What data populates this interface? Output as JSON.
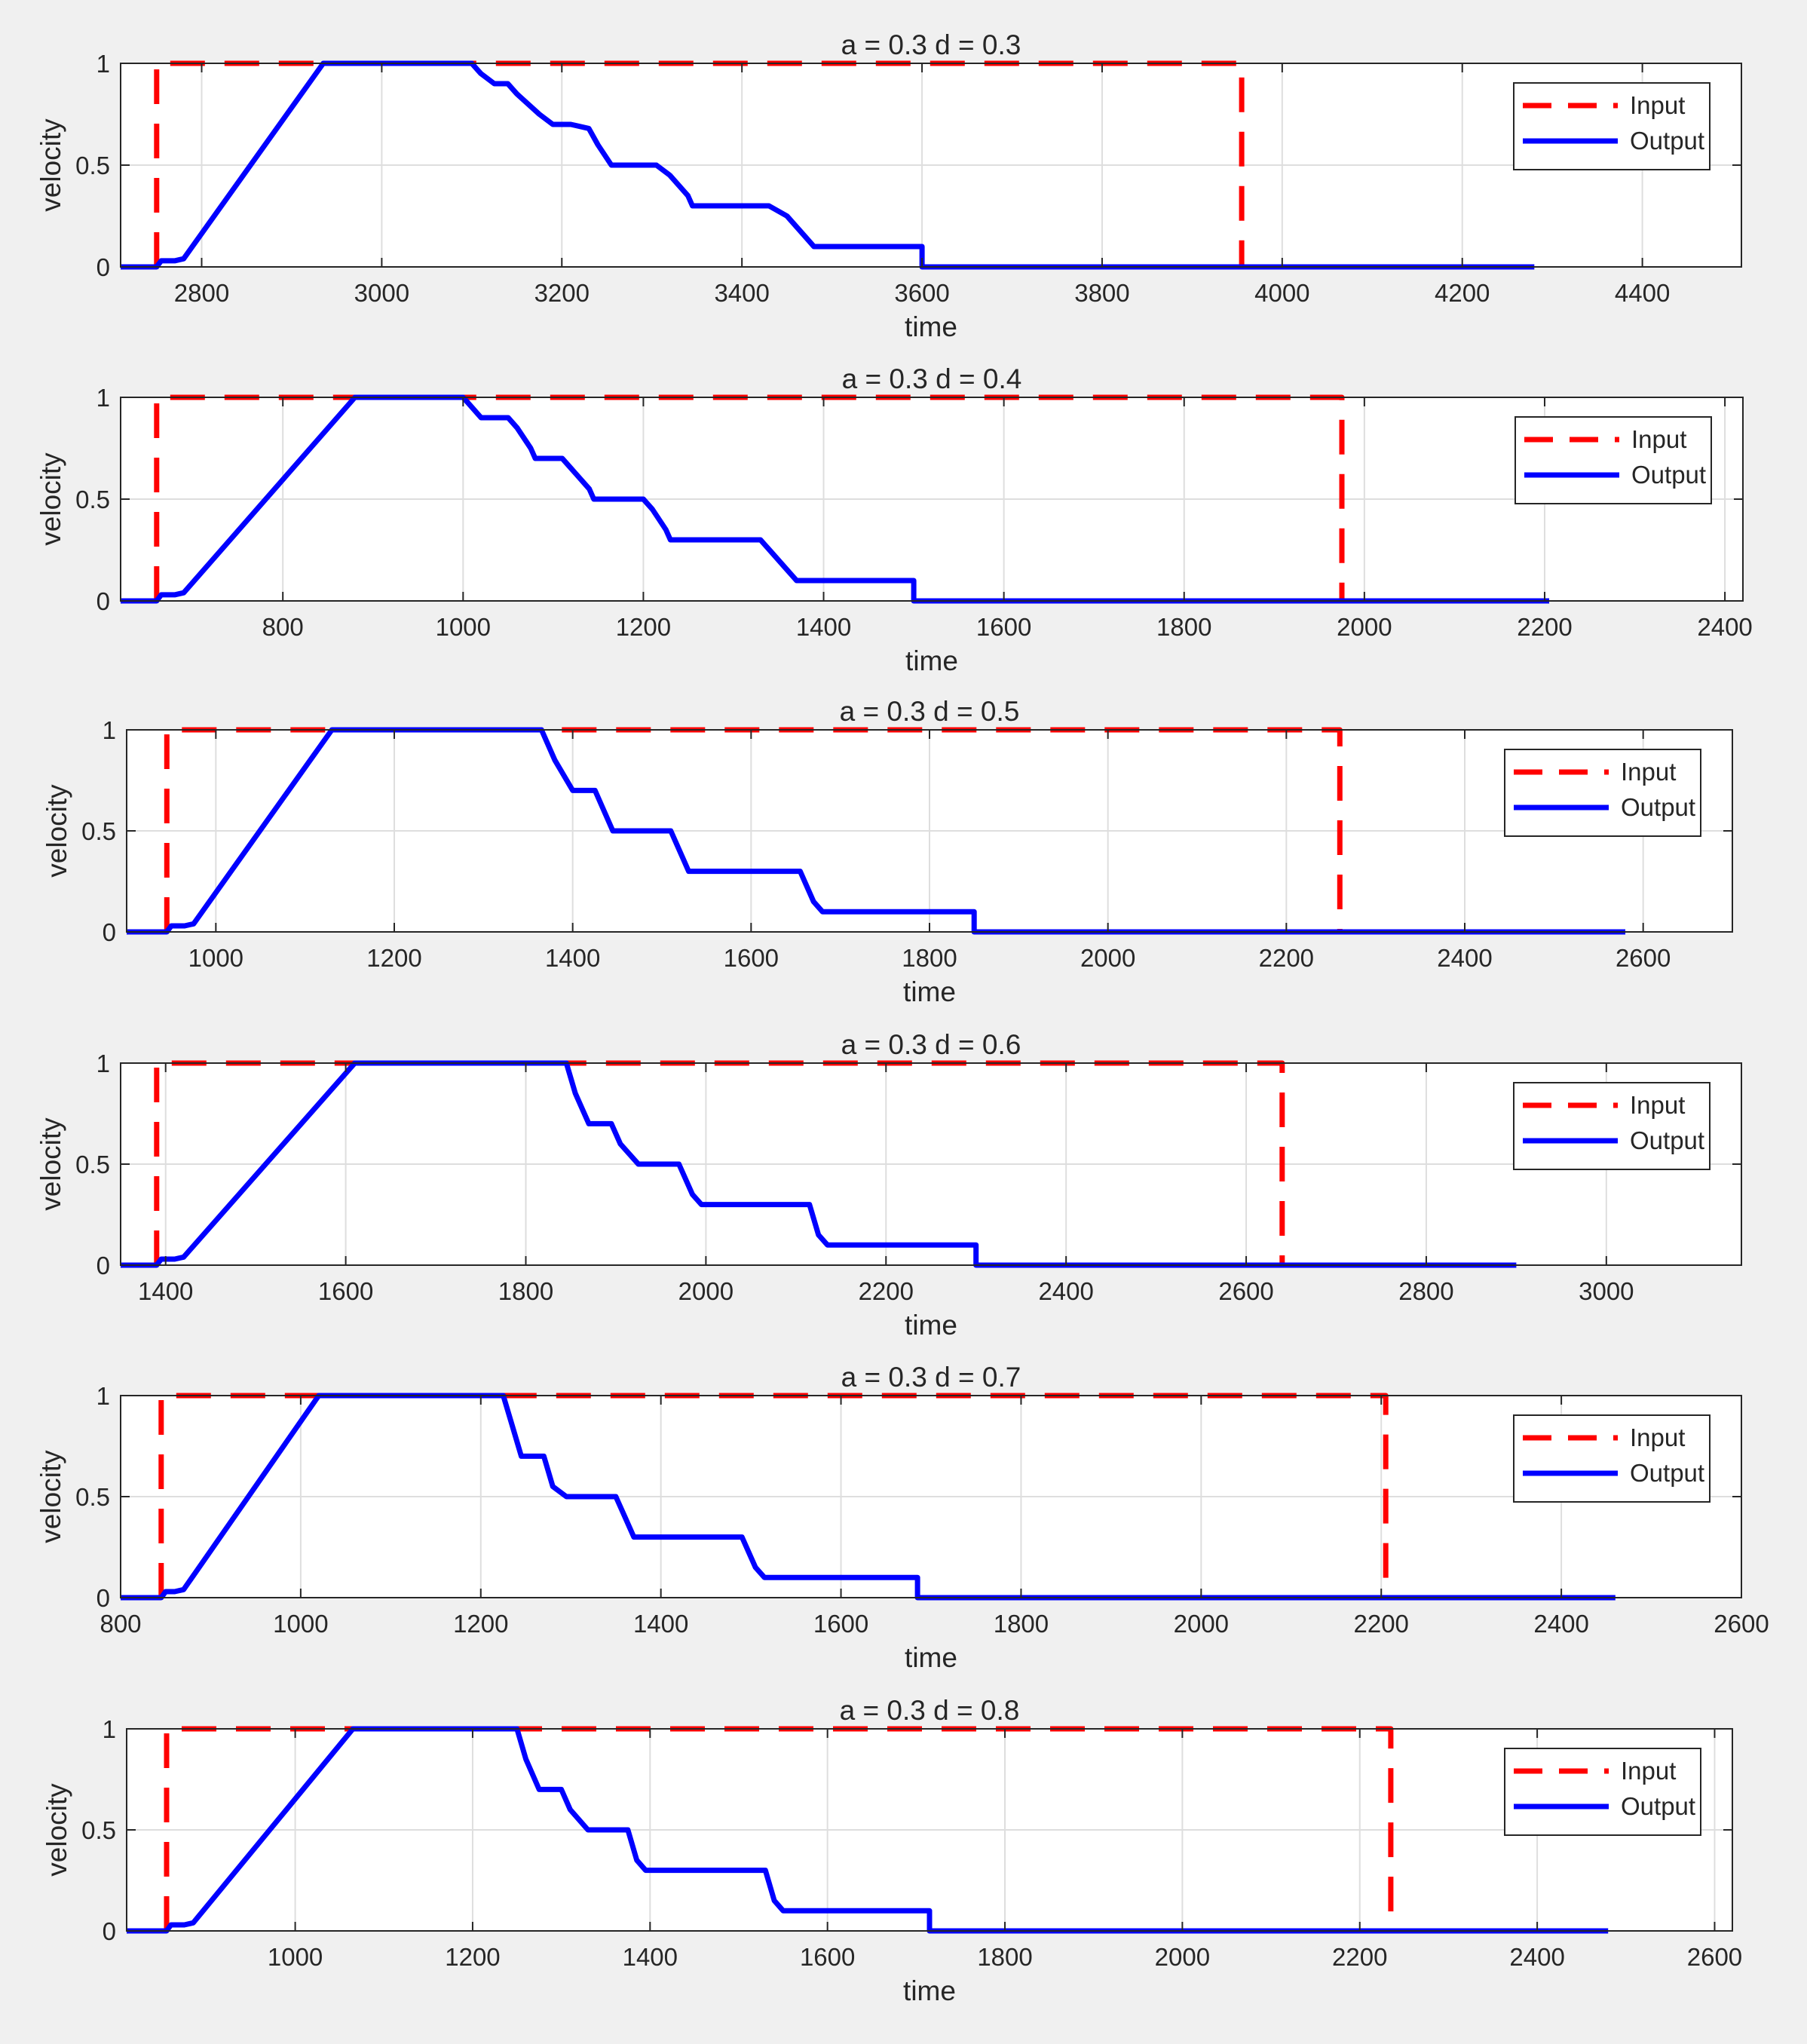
{
  "colors": {
    "figure_bg": "#f0f0f0",
    "axes_bg": "#ffffff",
    "grid": "#dedede",
    "axis": "#262626",
    "input": "#ff0000",
    "output": "#0000ff"
  },
  "chart_data": [
    {
      "type": "line",
      "title": "a = 0.3  d = 0.3",
      "xlabel": "time",
      "ylabel": "velocity",
      "xlim": [
        2710,
        4510
      ],
      "ylim": [
        0,
        1
      ],
      "xticks": [
        2800,
        3000,
        3200,
        3400,
        3600,
        3800,
        4000,
        4200,
        4400
      ],
      "yticks": [
        0,
        0.5,
        1
      ],
      "legend": {
        "location": "top-right",
        "entries": [
          "Input",
          "Output"
        ]
      },
      "series": [
        {
          "name": "Input",
          "style": "dashed",
          "color": "#ff0000",
          "x": [
            2750,
            2750,
            3955,
            3955
          ],
          "y": [
            0,
            1,
            1,
            0
          ]
        },
        {
          "name": "Output",
          "style": "solid",
          "color": "#0000ff",
          "x": [
            2710,
            2750,
            2755,
            2770,
            2780,
            2935,
            3100,
            3110,
            3125,
            3140,
            3150,
            3175,
            3190,
            3210,
            3230,
            3240,
            3255,
            3305,
            3320,
            3340,
            3345,
            3430,
            3450,
            3470,
            3480,
            3600,
            3600,
            4280
          ],
          "y": [
            0,
            0,
            0.03,
            0.03,
            0.04,
            1,
            1,
            0.95,
            0.9,
            0.9,
            0.85,
            0.75,
            0.7,
            0.7,
            0.68,
            0.6,
            0.5,
            0.5,
            0.45,
            0.35,
            0.3,
            0.3,
            0.25,
            0.15,
            0.1,
            0.1,
            0,
            0
          ]
        }
      ]
    },
    {
      "type": "line",
      "title": "a = 0.3  d = 0.4",
      "xlabel": "time",
      "ylabel": "velocity",
      "xlim": [
        620,
        2420
      ],
      "ylim": [
        0,
        1
      ],
      "xticks": [
        800,
        1000,
        1200,
        1400,
        1600,
        1800,
        2000,
        2200,
        2400
      ],
      "yticks": [
        0,
        0.5,
        1
      ],
      "legend": {
        "location": "top-right",
        "entries": [
          "Input",
          "Output"
        ]
      },
      "series": [
        {
          "name": "Input",
          "style": "dashed",
          "color": "#ff0000",
          "x": [
            660,
            660,
            1975,
            1975
          ],
          "y": [
            0,
            1,
            1,
            0
          ]
        },
        {
          "name": "Output",
          "style": "solid",
          "color": "#0000ff",
          "x": [
            620,
            660,
            665,
            680,
            690,
            880,
            1000,
            1010,
            1020,
            1050,
            1060,
            1075,
            1080,
            1110,
            1120,
            1140,
            1145,
            1200,
            1210,
            1225,
            1230,
            1330,
            1340,
            1360,
            1370,
            1500,
            1500,
            2205
          ],
          "y": [
            0,
            0,
            0.03,
            0.03,
            0.04,
            1,
            1,
            0.95,
            0.9,
            0.9,
            0.85,
            0.75,
            0.7,
            0.7,
            0.65,
            0.55,
            0.5,
            0.5,
            0.45,
            0.35,
            0.3,
            0.3,
            0.25,
            0.15,
            0.1,
            0.1,
            0,
            0
          ]
        }
      ]
    },
    {
      "type": "line",
      "title": "a = 0.3  d = 0.5",
      "xlabel": "time",
      "ylabel": "velocity",
      "xlim": [
        900,
        2700
      ],
      "ylim": [
        0,
        1
      ],
      "xticks": [
        1000,
        1200,
        1400,
        1600,
        1800,
        2000,
        2200,
        2400,
        2600
      ],
      "yticks": [
        0,
        0.5,
        1
      ],
      "legend": {
        "location": "top-right",
        "entries": [
          "Input",
          "Output"
        ]
      },
      "series": [
        {
          "name": "Input",
          "style": "dashed",
          "color": "#ff0000",
          "x": [
            945,
            945,
            2260,
            2260
          ],
          "y": [
            0,
            1,
            1,
            0
          ]
        },
        {
          "name": "Output",
          "style": "solid",
          "color": "#0000ff",
          "x": [
            900,
            945,
            950,
            965,
            975,
            1130,
            1365,
            1380,
            1400,
            1425,
            1445,
            1510,
            1525,
            1530,
            1655,
            1670,
            1680,
            1850,
            1850,
            2580
          ],
          "y": [
            0,
            0,
            0.03,
            0.03,
            0.04,
            1,
            1,
            0.85,
            0.7,
            0.7,
            0.5,
            0.5,
            0.35,
            0.3,
            0.3,
            0.15,
            0.1,
            0.1,
            0,
            0
          ]
        }
      ]
    },
    {
      "type": "line",
      "title": "a = 0.3  d = 0.6",
      "xlabel": "time",
      "ylabel": "velocity",
      "xlim": [
        1350,
        3150
      ],
      "ylim": [
        0,
        1
      ],
      "xticks": [
        1400,
        1600,
        1800,
        2000,
        2200,
        2400,
        2600,
        2800,
        3000
      ],
      "yticks": [
        0,
        0.5,
        1
      ],
      "legend": {
        "location": "top-right",
        "entries": [
          "Input",
          "Output"
        ]
      },
      "series": [
        {
          "name": "Input",
          "style": "dashed",
          "color": "#ff0000",
          "x": [
            1390,
            1390,
            2640,
            2640
          ],
          "y": [
            0,
            1,
            1,
            0
          ]
        },
        {
          "name": "Output",
          "style": "solid",
          "color": "#0000ff",
          "x": [
            1350,
            1390,
            1395,
            1410,
            1420,
            1610,
            1845,
            1855,
            1870,
            1895,
            1905,
            1925,
            1970,
            1985,
            1995,
            2115,
            2125,
            2135,
            2300,
            2300,
            2900
          ],
          "y": [
            0,
            0,
            0.03,
            0.03,
            0.04,
            1,
            1,
            0.85,
            0.7,
            0.7,
            0.6,
            0.5,
            0.5,
            0.35,
            0.3,
            0.3,
            0.15,
            0.1,
            0.1,
            0,
            0
          ]
        }
      ]
    },
    {
      "type": "line",
      "title": "a = 0.3  d = 0.7",
      "xlabel": "time",
      "ylabel": "velocity",
      "xlim": [
        800,
        2600
      ],
      "ylim": [
        0,
        1
      ],
      "xticks": [
        800,
        1000,
        1200,
        1400,
        1600,
        1800,
        2000,
        2200,
        2400,
        2600
      ],
      "yticks": [
        0,
        0.5,
        1
      ],
      "legend": {
        "location": "top-right",
        "entries": [
          "Input",
          "Output"
        ]
      },
      "series": [
        {
          "name": "Input",
          "style": "dashed",
          "color": "#ff0000",
          "x": [
            845,
            845,
            2205,
            2205
          ],
          "y": [
            0,
            1,
            1,
            0
          ]
        },
        {
          "name": "Output",
          "style": "solid",
          "color": "#0000ff",
          "x": [
            800,
            845,
            850,
            860,
            870,
            1020,
            1225,
            1235,
            1245,
            1270,
            1280,
            1295,
            1350,
            1360,
            1370,
            1490,
            1505,
            1515,
            1685,
            1685,
            2460
          ],
          "y": [
            0,
            0,
            0.03,
            0.03,
            0.04,
            1,
            1,
            0.85,
            0.7,
            0.7,
            0.55,
            0.5,
            0.5,
            0.4,
            0.3,
            0.3,
            0.15,
            0.1,
            0.1,
            0,
            0
          ]
        }
      ]
    },
    {
      "type": "line",
      "title": "a = 0.3  d = 0.8",
      "xlabel": "time",
      "ylabel": "velocity",
      "xlim": [
        810,
        2620
      ],
      "ylim": [
        0,
        1
      ],
      "xticks": [
        1000,
        1200,
        1400,
        1600,
        1800,
        2000,
        2200,
        2400,
        2600
      ],
      "yticks": [
        0,
        0.5,
        1
      ],
      "legend": {
        "location": "top-right",
        "entries": [
          "Input",
          "Output"
        ]
      },
      "series": [
        {
          "name": "Input",
          "style": "dashed",
          "color": "#ff0000",
          "x": [
            855,
            855,
            2235,
            2235
          ],
          "y": [
            0,
            1,
            1,
            0
          ]
        },
        {
          "name": "Output",
          "style": "solid",
          "color": "#0000ff",
          "x": [
            810,
            855,
            860,
            875,
            885,
            1065,
            1250,
            1260,
            1275,
            1300,
            1310,
            1330,
            1375,
            1385,
            1395,
            1530,
            1540,
            1550,
            1715,
            1715,
            2480
          ],
          "y": [
            0,
            0,
            0.03,
            0.03,
            0.04,
            1,
            1,
            0.85,
            0.7,
            0.7,
            0.6,
            0.5,
            0.5,
            0.35,
            0.3,
            0.3,
            0.15,
            0.1,
            0.1,
            0,
            0
          ]
        }
      ]
    }
  ]
}
